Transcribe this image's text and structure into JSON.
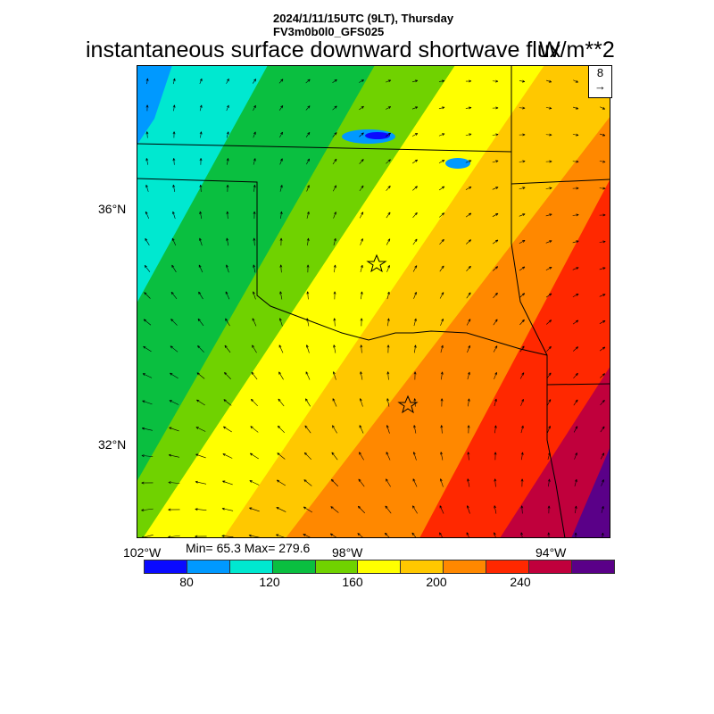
{
  "header": {
    "line1": "2024/1/11/15UTC (9LT), Thursday",
    "line2": "FV3m0b0l0_GFS025",
    "title": "instantaneous surface downward shortwave flux",
    "units": "W/m**2"
  },
  "axes": {
    "lat_labels": [
      "36°N",
      "32°N"
    ],
    "lon_labels": [
      "102°W",
      "98°W",
      "94°W"
    ]
  },
  "stats": "Min= 65.3 Max= 279.6",
  "wind_reference": {
    "value": "8"
  },
  "colorbar": {
    "colors": [
      "#0a0aff",
      "#0099ff",
      "#00e8d0",
      "#0abf40",
      "#70d200",
      "#ffff00",
      "#ffc800",
      "#ff8800",
      "#ff2800",
      "#c0003c",
      "#5a0088"
    ],
    "labels": [
      "80",
      "120",
      "160",
      "200",
      "240"
    ]
  }
}
